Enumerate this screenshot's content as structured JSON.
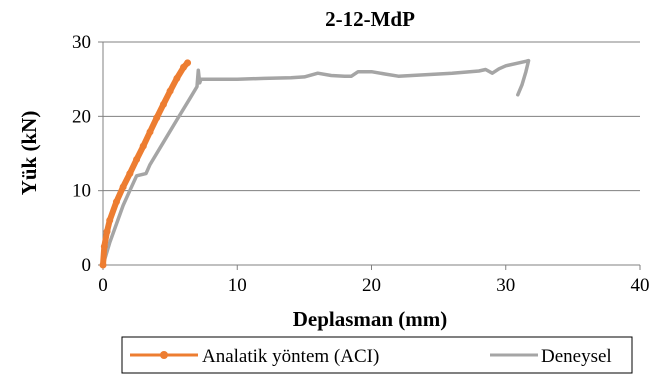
{
  "chart_data": {
    "type": "line",
    "title": "2-12-MdP",
    "xlabel": "Deplasman (mm)",
    "ylabel": "Yük (kN)",
    "xlim": [
      0,
      40
    ],
    "ylim": [
      0,
      30
    ],
    "xticks": [
      "0",
      "10",
      "20",
      "30",
      "40"
    ],
    "yticks": [
      "0",
      "10",
      "20",
      "30"
    ],
    "grid": "horizontal",
    "legend_position": "bottom",
    "series": [
      {
        "name": "Analatik yöntem (ACI)",
        "color": "#ed7d31",
        "marker": "circle",
        "x": [
          0,
          0.1,
          0.3,
          0.5,
          1.0,
          1.5,
          2.0,
          2.5,
          3.0,
          3.5,
          4.0,
          4.5,
          5.0,
          5.5,
          6.0,
          6.3
        ],
        "y": [
          0,
          2.5,
          4.5,
          6.0,
          8.5,
          10.5,
          12.3,
          14.2,
          16.0,
          17.9,
          19.8,
          21.6,
          23.4,
          25.1,
          26.6,
          27.2
        ]
      },
      {
        "name": "Deneysel",
        "color": "#a5a5a5",
        "marker": "none",
        "x": [
          0,
          0.5,
          1.0,
          1.5,
          2.0,
          2.5,
          3.2,
          3.5,
          4.5,
          5.5,
          6.5,
          7.0,
          7.1,
          7.2,
          7.3,
          8,
          10,
          12,
          14,
          15,
          16,
          17,
          18,
          18.5,
          19,
          20,
          21,
          22,
          24,
          26,
          28,
          28.5,
          29,
          29.5,
          30,
          31,
          31.5,
          31.7,
          31.5,
          31.2,
          30.9
        ],
        "y": [
          0,
          3,
          5.5,
          8,
          10,
          12,
          12.3,
          13.5,
          16.5,
          19.5,
          22.5,
          24,
          26.2,
          24.5,
          25,
          25,
          25,
          25.1,
          25.2,
          25.3,
          25.8,
          25.5,
          25.4,
          25.4,
          26.0,
          26.0,
          25.7,
          25.4,
          25.6,
          25.8,
          26.1,
          26.3,
          25.8,
          26.4,
          26.8,
          27.2,
          27.4,
          27.5,
          26.0,
          24.2,
          22.9
        ]
      }
    ]
  }
}
